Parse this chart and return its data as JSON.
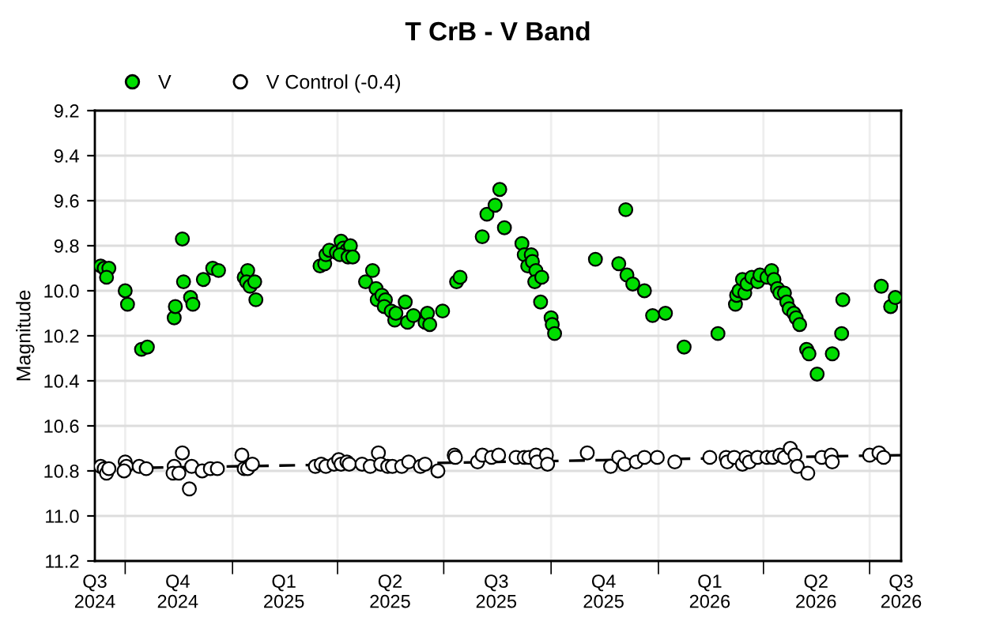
{
  "chart_data": {
    "type": "scatter",
    "title": "T CrB - V Band",
    "ylabel": "Magnitude",
    "xlim": [
      "2024-09-05",
      "2026-07-28"
    ],
    "ylim": [
      11.2,
      9.2
    ],
    "yticks": [
      9.2,
      9.4,
      9.6,
      9.8,
      {
        "value": 10,
        "label": "10.0"
      },
      10.2,
      10.4,
      10.6,
      10.8,
      {
        "value": 11,
        "label": "11.0"
      },
      11.2
    ],
    "xticks": [
      {
        "value": "2024-09-05",
        "label": "Q3\n2024"
      },
      {
        "value": "2024-10-01",
        "label": null
      },
      {
        "value": "2024-11-15",
        "label": "Q4\n2024"
      },
      {
        "value": "2025-01-01",
        "label": null
      },
      {
        "value": "2025-02-14",
        "label": "Q1\n2025"
      },
      {
        "value": "2025-04-01",
        "label": null
      },
      {
        "value": "2025-05-16",
        "label": "Q2\n2025"
      },
      {
        "value": "2025-07-01",
        "label": null
      },
      {
        "value": "2025-08-15",
        "label": "Q3\n2025"
      },
      {
        "value": "2025-10-01",
        "label": null
      },
      {
        "value": "2025-11-15",
        "label": "Q4\n2025"
      },
      {
        "value": "2026-01-01",
        "label": null
      },
      {
        "value": "2026-02-14",
        "label": "Q1\n2026"
      },
      {
        "value": "2026-04-01",
        "label": null
      },
      {
        "value": "2026-05-16",
        "label": "Q2\n2026"
      },
      {
        "value": "2026-07-01",
        "label": null
      },
      {
        "value": "2026-07-28",
        "label": "Q3\n2026"
      }
    ],
    "grid": true,
    "legend": "top left",
    "marker": "circle",
    "series": [
      {
        "name": "V",
        "color": "#00dd00",
        "x": [
          "2024-09-10",
          "2024-09-13",
          "2024-09-17",
          "2024-09-15",
          "2024-10-01",
          "2024-10-03",
          "2024-10-15",
          "2024-10-20",
          "2024-11-12",
          "2024-11-13",
          "2024-11-19",
          "2024-11-20",
          "2024-11-26",
          "2024-11-28",
          "2024-12-07",
          "2024-12-15",
          "2024-12-20",
          "2025-01-11",
          "2025-01-14",
          "2025-01-13",
          "2025-01-16",
          "2025-01-20",
          "2025-01-21",
          "2025-03-17",
          "2025-03-21",
          "2025-03-22",
          "2025-03-25",
          "2025-03-31",
          "2025-04-04",
          "2025-04-06",
          "2025-04-09",
          "2025-04-12",
          "2025-04-03",
          "2025-04-10",
          "2025-04-14",
          "2025-04-25",
          "2025-05-01",
          "2025-05-04",
          "2025-05-05",
          "2025-05-09",
          "2025-05-12",
          "2025-05-11",
          "2025-05-17",
          "2025-05-20",
          "2025-05-21",
          "2025-05-29",
          "2025-05-31",
          "2025-06-05",
          "2025-06-15",
          "2025-06-17",
          "2025-06-19",
          "2025-06-30",
          "2025-07-12",
          "2025-07-15",
          "2025-08-03",
          "2025-08-07",
          "2025-08-14",
          "2025-08-18",
          "2025-08-22",
          "2025-09-06",
          "2025-09-08",
          "2025-09-11",
          "2025-09-14",
          "2025-09-15",
          "2025-09-18",
          "2025-09-17",
          "2025-09-23",
          "2025-09-22",
          "2025-10-01",
          "2025-10-02",
          "2025-10-04",
          "2025-11-08",
          "2025-11-28",
          "2025-12-04",
          "2025-12-05",
          "2025-12-10",
          "2025-12-20",
          "2025-12-27",
          "2026-01-07",
          "2026-01-23",
          "2026-02-21",
          "2026-03-08",
          "2026-03-09",
          "2026-03-11",
          "2026-03-14",
          "2026-03-16",
          "2026-03-18",
          "2026-03-22",
          "2026-03-27",
          "2026-03-29",
          "2026-04-04",
          "2026-04-08",
          "2026-04-10",
          "2026-04-13",
          "2026-04-15",
          "2026-04-19",
          "2026-04-21",
          "2026-04-23",
          "2026-04-27",
          "2026-04-29",
          "2026-05-02",
          "2026-05-08",
          "2026-05-10",
          "2026-05-17",
          "2026-05-30",
          "2026-06-07",
          "2026-06-08",
          "2026-07-11",
          "2026-07-19",
          "2026-07-23"
        ],
        "values": [
          9.89,
          9.9,
          9.9,
          9.94,
          10.0,
          10.06,
          10.26,
          10.25,
          10.12,
          10.07,
          9.77,
          9.96,
          10.03,
          10.06,
          9.95,
          9.9,
          9.91,
          9.94,
          9.91,
          9.96,
          9.98,
          9.96,
          10.04,
          9.89,
          9.88,
          9.84,
          9.82,
          9.83,
          9.78,
          9.81,
          9.82,
          9.8,
          9.84,
          9.85,
          9.85,
          9.96,
          9.91,
          9.99,
          10.04,
          10.02,
          10.04,
          10.07,
          10.09,
          10.13,
          10.1,
          10.05,
          10.14,
          10.11,
          10.14,
          10.1,
          10.15,
          10.09,
          9.96,
          9.94,
          9.76,
          9.66,
          9.62,
          9.55,
          9.72,
          9.79,
          9.84,
          9.89,
          9.84,
          9.87,
          9.91,
          9.96,
          9.94,
          10.05,
          10.12,
          10.15,
          10.19,
          9.86,
          9.88,
          9.64,
          9.93,
          9.97,
          10.0,
          10.11,
          10.1,
          10.25,
          10.19,
          10.06,
          10.02,
          10.0,
          9.95,
          10.01,
          9.97,
          9.94,
          9.96,
          9.93,
          9.94,
          9.91,
          9.95,
          9.99,
          10.01,
          10.01,
          10.05,
          10.08,
          10.1,
          10.12,
          10.15,
          10.26,
          10.28,
          10.37,
          10.28,
          10.19,
          10.04,
          9.98,
          10.07,
          10.03
        ]
      },
      {
        "name": "V Control (-0.4)",
        "color": "#ffffff",
        "x": [
          "2024-09-10",
          "2024-09-13",
          "2024-09-15",
          "2024-09-17",
          "2024-10-01",
          "2024-10-02",
          "2024-09-30",
          "2024-10-13",
          "2024-10-19",
          "2024-11-12",
          "2024-11-11",
          "2024-11-16",
          "2024-11-19",
          "2024-11-25",
          "2024-11-27",
          "2024-12-06",
          "2024-12-13",
          "2024-12-19",
          "2025-01-09",
          "2025-01-11",
          "2025-01-14",
          "2025-01-18",
          "2025-03-13",
          "2025-03-18",
          "2025-03-22",
          "2025-03-29",
          "2025-04-02",
          "2025-04-04",
          "2025-04-09",
          "2025-04-11",
          "2025-04-22",
          "2025-04-29",
          "2025-05-06",
          "2025-05-08",
          "2025-05-14",
          "2025-05-18",
          "2025-05-26",
          "2025-06-01",
          "2025-06-11",
          "2025-06-15",
          "2025-06-26",
          "2025-07-10",
          "2025-07-11",
          "2025-07-30",
          "2025-08-03",
          "2025-08-11",
          "2025-08-17",
          "2025-09-01",
          "2025-09-08",
          "2025-09-12",
          "2025-09-18",
          "2025-09-19",
          "2025-09-27",
          "2025-09-28",
          "2025-11-01",
          "2025-11-21",
          "2025-11-28",
          "2025-12-03",
          "2025-12-13",
          "2025-12-20",
          "2025-12-31",
          "2026-01-15",
          "2026-02-14",
          "2026-02-28",
          "2026-03-01",
          "2026-03-07",
          "2026-03-14",
          "2026-03-17",
          "2026-03-20",
          "2026-03-27",
          "2026-04-04",
          "2026-04-09",
          "2026-04-15",
          "2026-04-19",
          "2026-04-24",
          "2026-04-28",
          "2026-04-30",
          "2026-05-09",
          "2026-05-21",
          "2026-05-29",
          "2026-05-30",
          "2026-07-01",
          "2026-07-09",
          "2026-07-13"
        ],
        "values": [
          10.78,
          10.79,
          10.81,
          10.79,
          10.76,
          10.78,
          10.8,
          10.78,
          10.79,
          10.78,
          10.81,
          10.81,
          10.72,
          10.88,
          10.78,
          10.8,
          10.79,
          10.79,
          10.73,
          10.79,
          10.79,
          10.77,
          10.78,
          10.77,
          10.78,
          10.77,
          10.75,
          10.77,
          10.76,
          10.77,
          10.77,
          10.78,
          10.72,
          10.77,
          10.78,
          10.78,
          10.78,
          10.76,
          10.78,
          10.77,
          10.8,
          10.73,
          10.74,
          10.76,
          10.73,
          10.74,
          10.73,
          10.74,
          10.74,
          10.74,
          10.73,
          10.76,
          10.73,
          10.77,
          10.72,
          10.78,
          10.74,
          10.77,
          10.76,
          10.74,
          10.74,
          10.76,
          10.74,
          10.74,
          10.76,
          10.74,
          10.77,
          10.74,
          10.76,
          10.74,
          10.74,
          10.74,
          10.73,
          10.74,
          10.7,
          10.73,
          10.78,
          10.81,
          10.74,
          10.73,
          10.76,
          10.73,
          10.72,
          10.74
        ]
      },
      {
        "type": "line",
        "color": "#000000",
        "line_style": "dashed",
        "marker": "none",
        "x": [
          "2024-09-05",
          "2026-07-28"
        ],
        "values": [
          10.79,
          10.73
        ]
      }
    ]
  }
}
